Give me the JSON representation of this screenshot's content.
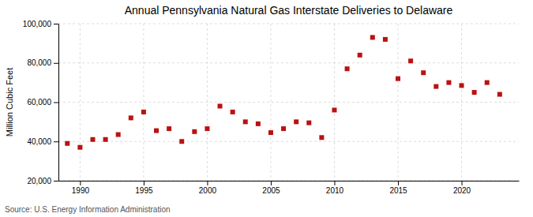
{
  "chart_data": {
    "type": "scatter",
    "title": "Annual Pennsylvania Natural Gas Interstate Deliveries to Delaware",
    "ylabel": "Million Cubic Feet",
    "source": "Source: U.S. Energy Information Administration",
    "x": [
      1989,
      1990,
      1991,
      1992,
      1993,
      1994,
      1995,
      1996,
      1997,
      1998,
      1999,
      2000,
      2001,
      2002,
      2003,
      2004,
      2005,
      2006,
      2007,
      2008,
      2009,
      2010,
      2011,
      2012,
      2013,
      2014,
      2015,
      2016,
      2017,
      2018,
      2019,
      2020,
      2021,
      2022,
      2023
    ],
    "values": [
      39000,
      37000,
      41000,
      41000,
      43500,
      52000,
      55000,
      45500,
      46500,
      40000,
      45000,
      46500,
      58000,
      55000,
      50000,
      49000,
      44500,
      46500,
      50000,
      49500,
      42000,
      56000,
      77000,
      84000,
      93000,
      92000,
      72000,
      81000,
      75000,
      68000,
      70000,
      68500,
      65000,
      70000,
      64000
    ],
    "color": "#bb1111",
    "marker": "square",
    "xlim": [
      1988.3,
      2024.5
    ],
    "ylim": [
      20000,
      100000
    ],
    "xticks": [
      1990,
      1995,
      2000,
      2005,
      2010,
      2015,
      2020
    ],
    "yticks": [
      {
        "value": 20000,
        "label": "20,000"
      },
      {
        "value": 40000,
        "label": "40,000"
      },
      {
        "value": 60000,
        "label": "60,000"
      },
      {
        "value": 80000,
        "label": "80,000"
      },
      {
        "value": 100000,
        "label": "100,000"
      }
    ],
    "grid": true
  }
}
